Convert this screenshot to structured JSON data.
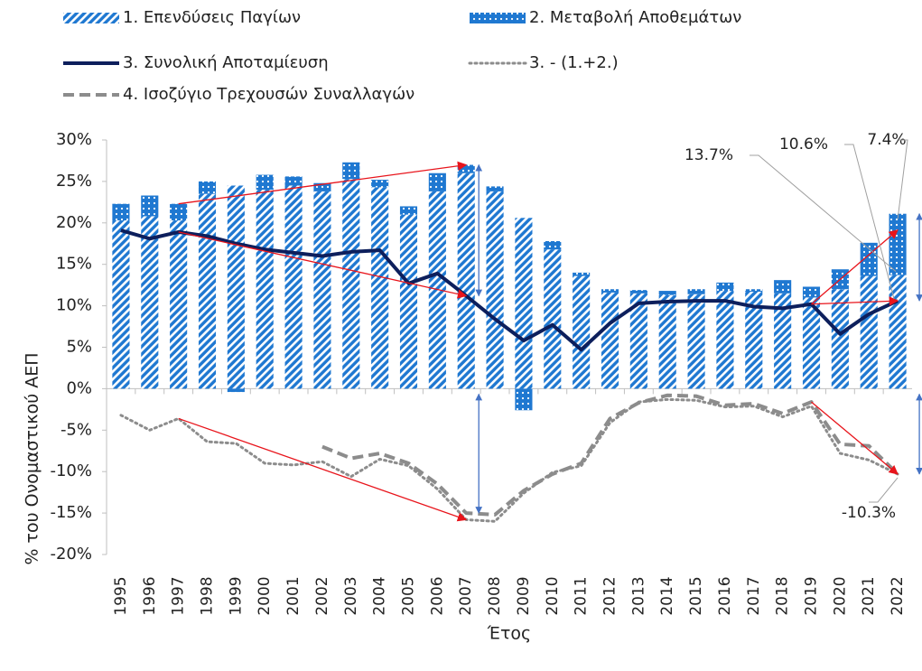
{
  "chart_data": {
    "type": "bar_line",
    "y_label": "% του Ονομαστικού ΑΕΠ",
    "x_label": "Έτος",
    "categories": [
      "1995",
      "1996",
      "1997",
      "1998",
      "1999",
      "2000",
      "2001",
      "2002",
      "2003",
      "2004",
      "2005",
      "2006",
      "2007",
      "2008",
      "2009",
      "2010",
      "2011",
      "2012",
      "2013",
      "2014",
      "2015",
      "2016",
      "2017",
      "2018",
      "2019",
      "2020",
      "2021",
      "2022"
    ],
    "series": [
      {
        "name": "1. Επενδύσεις Παγίων",
        "kind": "bar",
        "pattern": "hatch",
        "color": "#1f78d1",
        "values": [
          20.3,
          20.8,
          20.3,
          23.5,
          24.5,
          24.0,
          24.5,
          23.8,
          25.3,
          24.3,
          21.0,
          23.8,
          26.0,
          23.8,
          20.6,
          16.8,
          13.6,
          11.6,
          11.5,
          11.3,
          11.4,
          11.8,
          11.7,
          11.5,
          11.0,
          12.0,
          13.6,
          13.7
        ],
        "value_labels": [
          null,
          null,
          null,
          null,
          null,
          null,
          null,
          null,
          null,
          null,
          null,
          null,
          null,
          null,
          null,
          null,
          null,
          null,
          null,
          null,
          null,
          null,
          null,
          null,
          null,
          null,
          null,
          "13.7%"
        ]
      },
      {
        "name": "2. Μεταβολή Αποθεμάτων",
        "kind": "bar",
        "pattern": "dots",
        "color": "#1f78d1",
        "values": [
          2.0,
          2.5,
          2.0,
          1.5,
          -0.4,
          1.8,
          1.1,
          1.0,
          2.0,
          0.9,
          1.0,
          2.2,
          1.0,
          0.6,
          -2.6,
          1.0,
          0.4,
          0.4,
          0.4,
          0.5,
          0.6,
          1.0,
          0.3,
          1.6,
          1.3,
          2.4,
          4.0,
          7.4
        ],
        "value_labels": [
          null,
          null,
          null,
          null,
          null,
          null,
          null,
          null,
          null,
          null,
          null,
          null,
          null,
          null,
          null,
          null,
          null,
          null,
          null,
          null,
          null,
          null,
          null,
          null,
          null,
          null,
          null,
          "7.4%"
        ]
      },
      {
        "name": "3. Συνολική Αποταμίευση",
        "kind": "line",
        "dash": "solid",
        "color": "#0d1f5c",
        "values": [
          19.1,
          18.1,
          18.9,
          18.4,
          17.5,
          16.8,
          16.4,
          16.0,
          16.5,
          16.7,
          12.7,
          13.9,
          11.2,
          8.4,
          5.8,
          7.7,
          4.7,
          7.9,
          10.3,
          10.5,
          10.6,
          10.6,
          9.9,
          9.7,
          10.2,
          6.6,
          9.0,
          10.6
        ],
        "value_labels": [
          null,
          null,
          null,
          null,
          null,
          null,
          null,
          null,
          null,
          null,
          null,
          null,
          null,
          null,
          null,
          null,
          null,
          null,
          null,
          null,
          null,
          null,
          null,
          null,
          null,
          null,
          null,
          "10.6%"
        ]
      },
      {
        "name": "3. - (1.+2.)",
        "kind": "line",
        "dash": "dotted",
        "color": "#8c8c8c",
        "values": [
          -3.2,
          -5.0,
          -3.6,
          -6.4,
          -6.6,
          -9.0,
          -9.2,
          -8.8,
          -10.6,
          -8.5,
          -9.3,
          -12.1,
          -15.8,
          -16.0,
          -12.6,
          -10.1,
          -9.3,
          -4.1,
          -1.6,
          -1.3,
          -1.4,
          -2.2,
          -2.1,
          -3.4,
          -2.1,
          -7.8,
          -8.6,
          -10.3
        ]
      },
      {
        "name": "4. Ισοζύγιο Τρεχουσών Συναλλαγών",
        "kind": "line",
        "dash": "dashed",
        "color": "#8c8c8c",
        "values": [
          null,
          null,
          null,
          null,
          null,
          null,
          null,
          -7.0,
          -8.4,
          -7.8,
          -9.0,
          -11.5,
          -15.0,
          -15.2,
          -12.3,
          -10.3,
          -9.0,
          -3.6,
          -1.7,
          -0.8,
          -0.9,
          -2.0,
          -1.8,
          -3.0,
          -1.6,
          -6.7,
          -6.9,
          -10.3
        ],
        "value_labels": [
          null,
          null,
          null,
          null,
          null,
          null,
          null,
          null,
          null,
          null,
          null,
          null,
          null,
          null,
          null,
          null,
          null,
          null,
          null,
          null,
          null,
          null,
          null,
          null,
          null,
          null,
          null,
          "-10.3%"
        ]
      }
    ],
    "ylim": [
      -20,
      30
    ],
    "yticks": [
      {
        "value": -20,
        "label": "-20%"
      },
      {
        "value": -15,
        "label": "-15%"
      },
      {
        "value": -10,
        "label": "-10%"
      },
      {
        "value": -5,
        "label": "-5%"
      },
      {
        "value": 0,
        "label": "0%"
      },
      {
        "value": 5,
        "label": "5%"
      },
      {
        "value": 10,
        "label": "10%"
      },
      {
        "value": 15,
        "label": "15%"
      },
      {
        "value": 20,
        "label": "20%"
      },
      {
        "value": 25,
        "label": "25%"
      },
      {
        "value": 30,
        "label": "30%"
      }
    ],
    "grid": false
  }
}
